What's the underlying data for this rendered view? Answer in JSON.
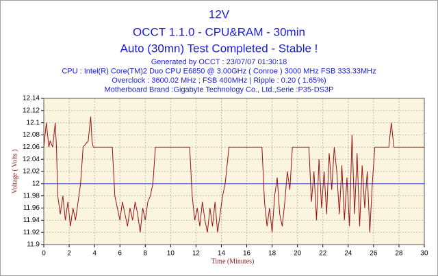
{
  "chart_data": {
    "type": "line",
    "title": "12V",
    "subtitle": "OCCT 1.1.0 - CPU&RAM - 30min",
    "status": "Auto (30mn) Test Completed - Stable !",
    "info": [
      "Generated by OCCT : 23/07/07 01:30:18",
      "CPU : Intel(R) Core(TM)2 Duo CPU      E6850  @ 3.00GHz ( Conroe ) 3000 MHz FSB 333.33MHz",
      "Overclock : 3600.02 MHz ; FSB 400MHz | Ripple : 0.20 ( 1.65%)",
      "Motherboard Brand :Gigabyte Technology Co., Ltd.,Serie :P35-DS3P"
    ],
    "y_label": "Voltage ( Volts )",
    "x_label": "Time (Minutes)",
    "xlim": [
      0,
      30
    ],
    "xticks": [
      0,
      2,
      4,
      6,
      8,
      10,
      12,
      14,
      16,
      18,
      20,
      22,
      24,
      26,
      28,
      30
    ],
    "ylim": [
      11.9,
      12.14
    ],
    "yticks": [
      11.9,
      11.92,
      11.94,
      11.96,
      11.98,
      12,
      12.02,
      12.04,
      12.06,
      12.08,
      12.1,
      12.12,
      12.14
    ],
    "grid": true,
    "reference_value": 12,
    "reference_color": "#2a2ad0",
    "x": [
      0,
      0.2,
      0.4,
      0.5,
      0.7,
      0.9,
      1.0,
      1.1,
      1.3,
      1.5,
      1.7,
      1.9,
      2.1,
      2.3,
      2.5,
      2.7,
      2.9,
      3.1,
      3.5,
      3.7,
      3.8,
      3.9,
      4.1,
      5.4,
      5.6,
      5.8,
      6.0,
      6.2,
      6.4,
      6.6,
      6.8,
      7.0,
      7.2,
      7.4,
      7.6,
      7.8,
      8.0,
      8.2,
      8.4,
      8.6,
      8.8,
      11.5,
      11.7,
      11.9,
      12.1,
      12.3,
      12.5,
      12.7,
      12.9,
      13.1,
      13.3,
      13.5,
      13.7,
      13.9,
      14.1,
      14.3,
      14.6,
      17.2,
      17.4,
      17.6,
      17.8,
      18.0,
      18.2,
      18.4,
      18.6,
      18.8,
      19.0,
      19.2,
      19.4,
      19.6,
      20.9,
      21.1,
      21.3,
      21.5,
      21.7,
      21.9,
      22.1,
      22.3,
      22.5,
      22.7,
      22.9,
      23.1,
      23.3,
      23.5,
      23.7,
      23.9,
      24.1,
      24.3,
      24.5,
      24.7,
      24.9,
      25.1,
      25.3,
      25.5,
      25.7,
      25.9,
      26.1,
      27.2,
      27.4,
      27.6,
      30
    ],
    "series": [
      {
        "name": "12V",
        "color": "#9b1010",
        "values": [
          12.06,
          12.1,
          12.06,
          12.07,
          12.06,
          12.1,
          12.06,
          11.98,
          11.95,
          11.98,
          11.94,
          11.97,
          11.93,
          11.96,
          11.94,
          11.97,
          12.0,
          12.06,
          12.07,
          12.11,
          12.07,
          12.06,
          12.06,
          12.06,
          11.98,
          11.96,
          11.94,
          11.97,
          11.95,
          11.93,
          11.96,
          11.94,
          11.97,
          11.95,
          11.92,
          11.96,
          11.94,
          11.97,
          11.98,
          12.0,
          12.06,
          12.06,
          11.98,
          11.94,
          11.96,
          11.93,
          11.97,
          11.94,
          11.92,
          11.96,
          11.93,
          11.97,
          11.92,
          11.95,
          11.98,
          12.0,
          12.06,
          12.06,
          11.97,
          11.93,
          11.96,
          11.92,
          11.98,
          12.01,
          11.95,
          11.93,
          11.97,
          12.02,
          11.99,
          12.06,
          12.06,
          11.97,
          12.02,
          11.94,
          12.04,
          11.96,
          12.02,
          11.95,
          12.05,
          11.99,
          12.06,
          12.02,
          11.95,
          12.03,
          11.94,
          12.01,
          11.93,
          12.08,
          11.95,
          12.05,
          11.93,
          12.03,
          11.96,
          12.02,
          11.92,
          12.0,
          12.06,
          12.06,
          12.1,
          12.06,
          12.06
        ]
      }
    ]
  }
}
